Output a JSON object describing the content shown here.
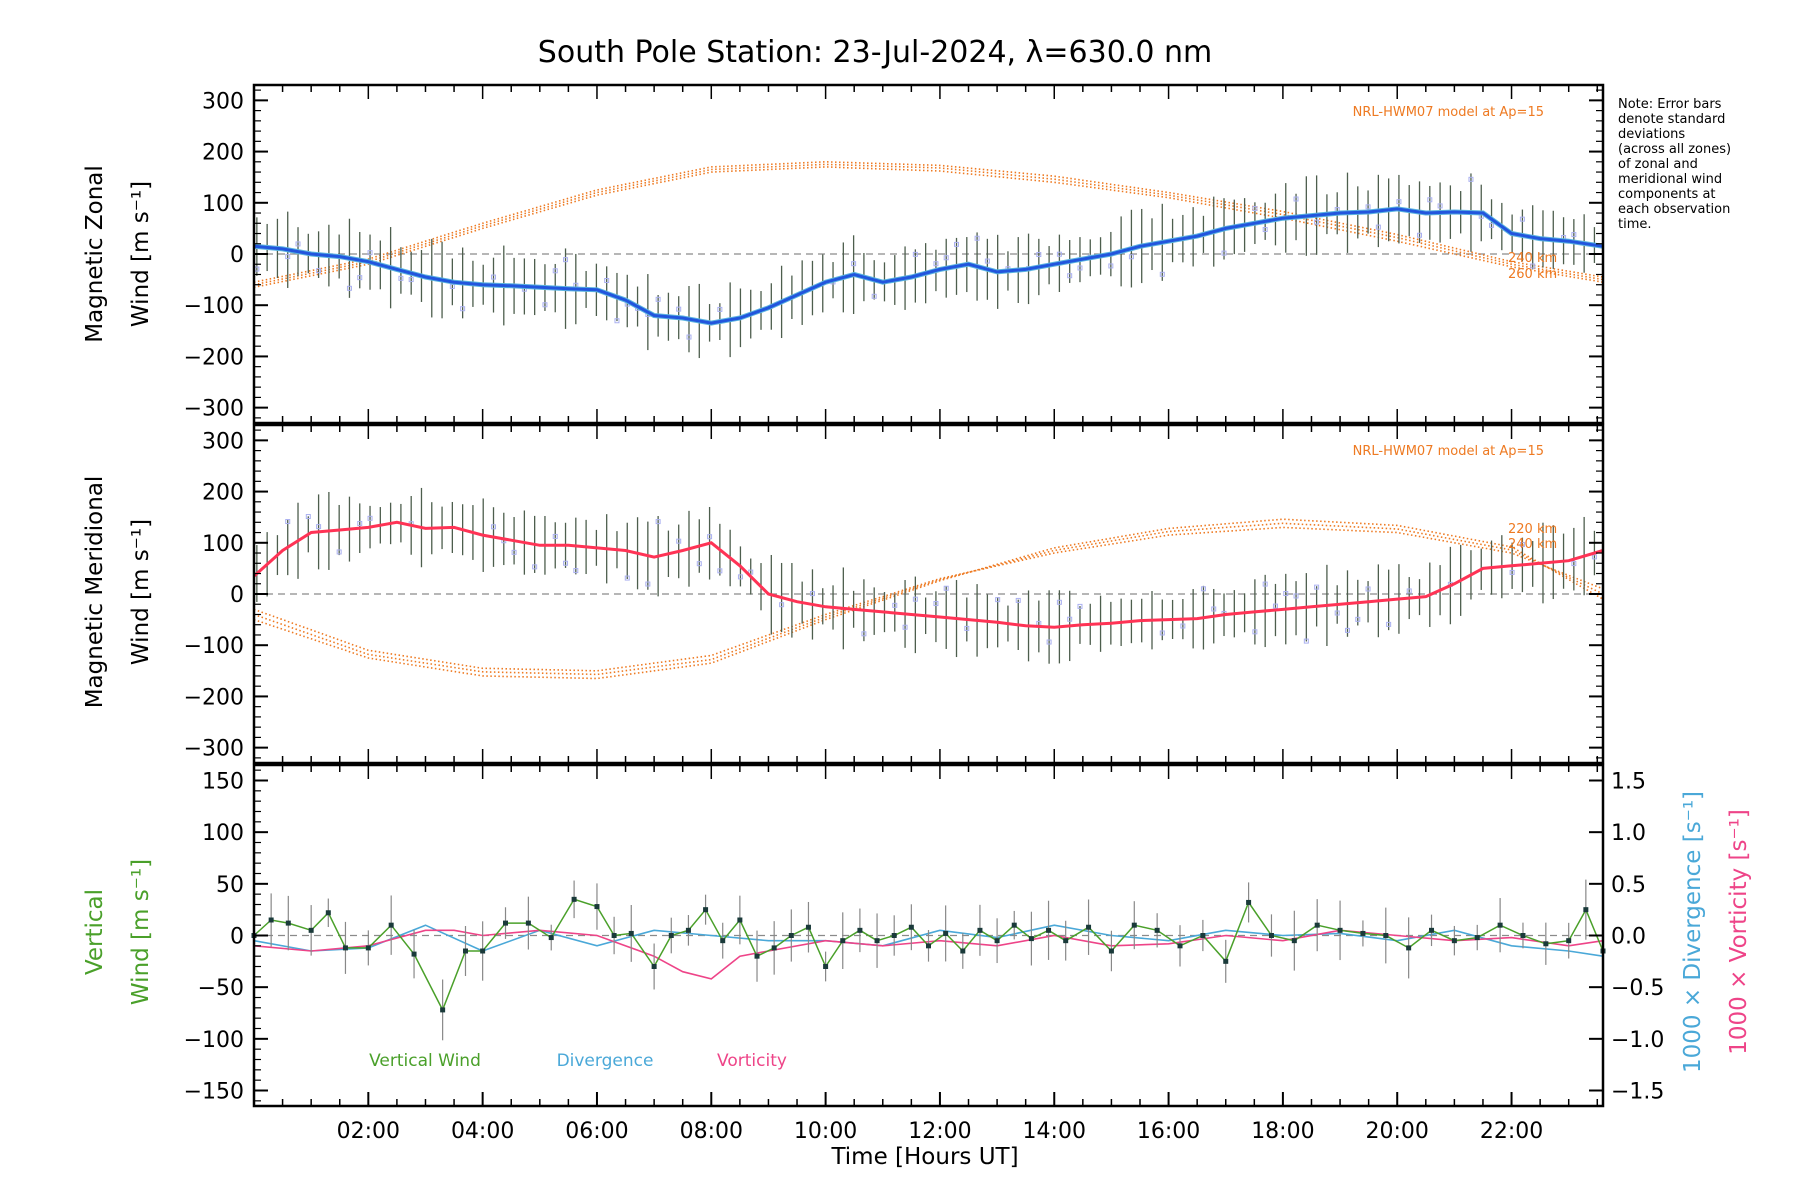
{
  "title": "South Pole Station: 23-Jul-2024, λ=630.0 nm",
  "note": [
    "Note: Error bars",
    "denote standard",
    "deviations",
    "(across all zones)",
    "of zonal and",
    "meridional wind",
    "components at",
    "each observation",
    "time."
  ],
  "colors": {
    "zonal": "#2255dd",
    "zonal_light": "#5ab4e0",
    "meridional": "#ff3355",
    "model": "#ee7a22",
    "vertical": "#4aa02a",
    "divergence": "#4aa8d8",
    "vorticity": "#ee4488",
    "errbar": "#4d5e4d",
    "scatter": "#aab0f0",
    "zero": "#8a8a8a"
  },
  "chart_data": [
    {
      "type": "line",
      "title": "South Pole Station: 23-Jul-2024, λ=630.0 nm",
      "xlabel": "",
      "ylabel_1": "Magnetic Zonal",
      "ylabel_2": "Wind [m s⁻¹]",
      "xlim": [
        0,
        23.6
      ],
      "ylim": [
        -330,
        330
      ],
      "yticks": [
        300,
        200,
        100,
        0,
        -100,
        -200,
        -300
      ],
      "ytick_labels": [
        "300",
        "200",
        "100",
        "0",
        "−100",
        "−200",
        "−300"
      ],
      "model_label": "NRL-HWM07 model at Ap=15",
      "model_altitude_labels": [
        "240 km",
        "260 km"
      ],
      "series": [
        {
          "name": "Zonal wind",
          "x": [
            0,
            0.5,
            1,
            1.5,
            2,
            2.5,
            3,
            3.5,
            4,
            4.5,
            5,
            5.5,
            6,
            6.5,
            7,
            7.5,
            8,
            8.5,
            9,
            9.5,
            10,
            10.5,
            11,
            11.5,
            12,
            12.5,
            13,
            13.5,
            14,
            14.5,
            15,
            15.5,
            16,
            16.5,
            17,
            17.5,
            18,
            18.5,
            19,
            19.5,
            20,
            20.5,
            21,
            21.5,
            22,
            22.5,
            23,
            23.6
          ],
          "values": [
            15,
            10,
            0,
            -5,
            -15,
            -30,
            -45,
            -55,
            -60,
            -62,
            -65,
            -68,
            -70,
            -90,
            -120,
            -125,
            -135,
            -125,
            -105,
            -80,
            -55,
            -40,
            -55,
            -45,
            -30,
            -20,
            -35,
            -30,
            -20,
            -10,
            0,
            15,
            25,
            35,
            50,
            60,
            70,
            75,
            80,
            82,
            88,
            80,
            82,
            80,
            40,
            30,
            25,
            15
          ]
        },
        {
          "name": "NRL-HWM07 220 km",
          "x": [
            0,
            2,
            4,
            6,
            8,
            10,
            12,
            14,
            16,
            18,
            20,
            22,
            23.6
          ],
          "values": [
            -65,
            -20,
            50,
            115,
            160,
            170,
            162,
            140,
            110,
            70,
            25,
            -25,
            -55
          ]
        },
        {
          "name": "NRL-HWM07 240 km",
          "x": [
            0,
            2,
            4,
            6,
            8,
            10,
            12,
            14,
            16,
            18,
            20,
            22,
            23.6
          ],
          "values": [
            -60,
            -15,
            55,
            120,
            165,
            175,
            168,
            146,
            115,
            77,
            32,
            -20,
            -50
          ]
        },
        {
          "name": "NRL-HWM07 260 km",
          "x": [
            0,
            2,
            4,
            6,
            8,
            10,
            12,
            14,
            16,
            18,
            20,
            22,
            23.6
          ],
          "values": [
            -55,
            -10,
            60,
            125,
            170,
            180,
            173,
            152,
            120,
            83,
            38,
            -15,
            -45
          ]
        }
      ]
    },
    {
      "type": "line",
      "ylabel_1": "Magnetic Meridional",
      "ylabel_2": "Wind [m s⁻¹]",
      "xlim": [
        0,
        23.6
      ],
      "ylim": [
        -330,
        330
      ],
      "yticks": [
        300,
        200,
        100,
        0,
        -100,
        -200,
        -300
      ],
      "ytick_labels": [
        "300",
        "200",
        "100",
        "0",
        "−100",
        "−200",
        "−300"
      ],
      "model_label": "NRL-HWM07 model at Ap=15",
      "model_altitude_labels": [
        "220 km",
        "240 km"
      ],
      "series": [
        {
          "name": "Meridional wind",
          "x": [
            0,
            0.5,
            1,
            1.5,
            2,
            2.5,
            3,
            3.5,
            4,
            4.5,
            5,
            5.5,
            6,
            6.5,
            7,
            7.5,
            8,
            8.5,
            9,
            9.5,
            10,
            10.5,
            11,
            11.5,
            12,
            12.5,
            13,
            13.5,
            14,
            14.5,
            15,
            15.5,
            16,
            16.5,
            17,
            17.5,
            18,
            18.5,
            19,
            19.5,
            20,
            20.5,
            21,
            21.5,
            22,
            22.5,
            23,
            23.6
          ],
          "values": [
            35,
            85,
            120,
            125,
            130,
            140,
            128,
            130,
            115,
            105,
            95,
            95,
            90,
            85,
            72,
            85,
            100,
            55,
            0,
            -15,
            -25,
            -30,
            -35,
            -40,
            -45,
            -50,
            -55,
            -62,
            -65,
            -60,
            -57,
            -52,
            -50,
            -48,
            -40,
            -35,
            -30,
            -25,
            -20,
            -15,
            -10,
            -5,
            20,
            50,
            55,
            60,
            65,
            85
          ]
        },
        {
          "name": "NRL-HWM07 220 km",
          "x": [
            0,
            2,
            4,
            6,
            8,
            10,
            12,
            14,
            16,
            18,
            20,
            22,
            23.6
          ],
          "values": [
            -30,
            -110,
            -145,
            -150,
            -120,
            -40,
            30,
            80,
            115,
            130,
            120,
            80,
            10
          ]
        },
        {
          "name": "NRL-HWM07 240 km",
          "x": [
            0,
            2,
            4,
            6,
            8,
            10,
            12,
            14,
            16,
            18,
            20,
            22,
            23.6
          ],
          "values": [
            -40,
            -118,
            -152,
            -157,
            -128,
            -45,
            28,
            85,
            122,
            138,
            127,
            86,
            0
          ]
        },
        {
          "name": "NRL-HWM07 260 km",
          "x": [
            0,
            2,
            4,
            6,
            8,
            10,
            12,
            14,
            16,
            18,
            20,
            22,
            23.6
          ],
          "values": [
            -50,
            -125,
            -160,
            -165,
            -135,
            -50,
            26,
            90,
            128,
            146,
            134,
            92,
            -10
          ]
        }
      ]
    },
    {
      "type": "line",
      "xlabel": "Time [Hours UT]",
      "ylabel_1": "Vertical",
      "ylabel_2": "Wind [m s⁻¹]",
      "y2label_1": "1000 × Divergence [s⁻¹]",
      "y2label_2": "1000 × Vorticity [s⁻¹]",
      "xlim": [
        0,
        23.6
      ],
      "ylim": [
        -165,
        165
      ],
      "yticks": [
        150,
        100,
        50,
        0,
        -50,
        -100,
        -150
      ],
      "ytick_labels": [
        "150",
        "100",
        "50",
        "0",
        "−50",
        "−100",
        "−150"
      ],
      "y2lim": [
        -1.65,
        1.65
      ],
      "y2ticks": [
        1.5,
        1.0,
        0.5,
        0.0,
        -0.5,
        -1.0,
        -1.5
      ],
      "y2tick_labels": [
        "1.5",
        "1.0",
        "0.5",
        "0.0",
        "−0.5",
        "−1.0",
        "−1.5"
      ],
      "xticks": [
        2,
        4,
        6,
        8,
        10,
        12,
        14,
        16,
        18,
        20,
        22
      ],
      "xtick_labels": [
        "02:00",
        "04:00",
        "06:00",
        "08:00",
        "10:00",
        "12:00",
        "14:00",
        "16:00",
        "18:00",
        "20:00",
        "22:00"
      ],
      "legend": [
        "Vertical Wind",
        "Divergence",
        "Vorticity"
      ],
      "series": [
        {
          "name": "Vertical Wind",
          "x": [
            0,
            0.3,
            0.6,
            1.0,
            1.3,
            1.6,
            2.0,
            2.4,
            2.8,
            3.3,
            3.7,
            4.0,
            4.4,
            4.8,
            5.2,
            5.6,
            6.0,
            6.3,
            6.6,
            7.0,
            7.3,
            7.6,
            7.9,
            8.2,
            8.5,
            8.8,
            9.1,
            9.4,
            9.7,
            10.0,
            10.3,
            10.6,
            10.9,
            11.2,
            11.5,
            11.8,
            12.1,
            12.4,
            12.7,
            13.0,
            13.3,
            13.6,
            13.9,
            14.2,
            14.6,
            15.0,
            15.4,
            15.8,
            16.2,
            16.6,
            17.0,
            17.4,
            17.8,
            18.2,
            18.6,
            19.0,
            19.4,
            19.8,
            20.2,
            20.6,
            21.0,
            21.4,
            21.8,
            22.2,
            22.6,
            23.0,
            23.3,
            23.6
          ],
          "values": [
            0,
            15,
            12,
            5,
            22,
            -12,
            -12,
            10,
            -18,
            -72,
            -15,
            -15,
            12,
            12,
            -2,
            35,
            28,
            0,
            2,
            -30,
            0,
            5,
            25,
            -5,
            15,
            -20,
            -12,
            0,
            8,
            -30,
            -5,
            5,
            -5,
            0,
            8,
            -10,
            2,
            -15,
            5,
            -5,
            10,
            -3,
            5,
            -5,
            8,
            -15,
            10,
            5,
            -10,
            0,
            -25,
            32,
            0,
            -5,
            10,
            5,
            2,
            0,
            -12,
            5,
            -5,
            -2,
            10,
            0,
            -8,
            -5,
            25,
            -15
          ]
        },
        {
          "name": "Divergence",
          "x": [
            0,
            1,
            2,
            3,
            4,
            5,
            6,
            7,
            8,
            9,
            10,
            11,
            12,
            13,
            14,
            15,
            16,
            17,
            18,
            19,
            20,
            21,
            22,
            23,
            23.6
          ],
          "values": [
            -0.05,
            -0.15,
            -0.12,
            0.1,
            -0.15,
            0.05,
            -0.1,
            0.05,
            0.0,
            -0.05,
            -0.05,
            -0.1,
            0.05,
            -0.02,
            0.1,
            0.0,
            -0.05,
            0.05,
            0.0,
            0.02,
            -0.05,
            0.05,
            -0.1,
            -0.15,
            -0.2
          ]
        },
        {
          "name": "Vorticity",
          "x": [
            0,
            1,
            2,
            3,
            3.5,
            4,
            5,
            6,
            7,
            7.5,
            8,
            8.5,
            9,
            10,
            11,
            12,
            13,
            14,
            15,
            16,
            17,
            18,
            19,
            20,
            21,
            22,
            23,
            23.6
          ],
          "values": [
            -0.1,
            -0.15,
            -0.1,
            0.05,
            0.05,
            0.0,
            0.05,
            0.0,
            -0.2,
            -0.35,
            -0.42,
            -0.2,
            -0.15,
            -0.05,
            -0.1,
            -0.05,
            -0.1,
            0.0,
            -0.1,
            -0.08,
            0.0,
            -0.05,
            0.05,
            0.0,
            -0.05,
            -0.02,
            -0.1,
            -0.05
          ]
        }
      ]
    }
  ]
}
